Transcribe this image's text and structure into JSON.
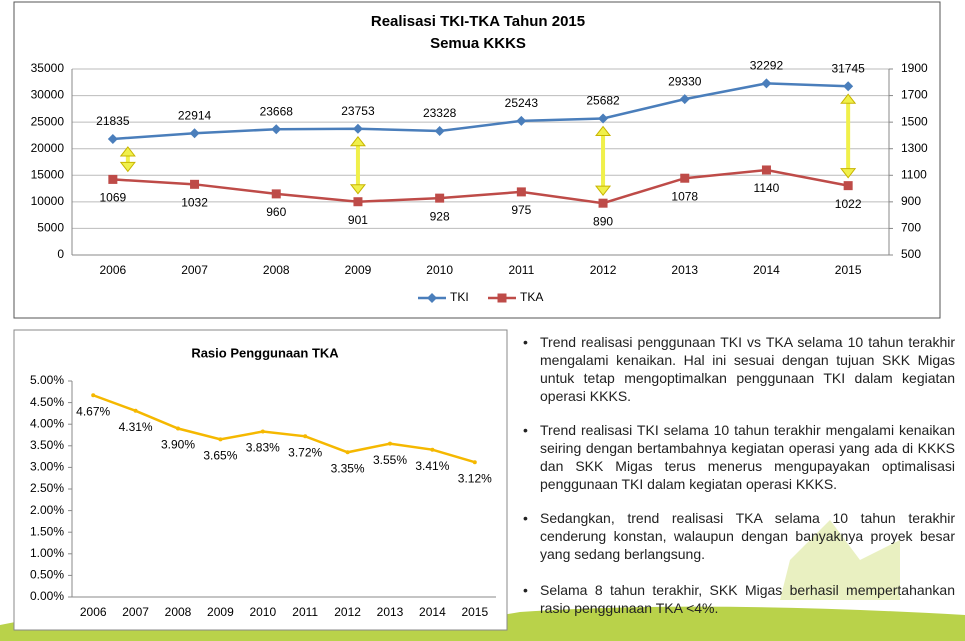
{
  "chart_data": [
    {
      "type": "line",
      "title": "Realisasi TKI-TKA Tahun 2015",
      "subtitle": "Semua KKKS",
      "categories": [
        "2006",
        "2007",
        "2008",
        "2009",
        "2010",
        "2011",
        "2012",
        "2013",
        "2014",
        "2015"
      ],
      "series": [
        {
          "name": "TKI",
          "color": "#4a7ebb",
          "marker": "diamond",
          "axis": "y",
          "values": [
            21835,
            22914,
            23668,
            23753,
            23328,
            25243,
            25682,
            29330,
            32292,
            31745
          ]
        },
        {
          "name": "TKA",
          "color": "#be4b48",
          "marker": "square",
          "axis": "y2",
          "values": [
            1069,
            1032,
            960,
            901,
            928,
            975,
            890,
            1078,
            1140,
            1022
          ]
        }
      ],
      "ylim": [
        0,
        35000
      ],
      "yticks": [
        0,
        5000,
        10000,
        15000,
        20000,
        25000,
        30000,
        35000
      ],
      "y2lim": [
        500,
        1900
      ],
      "y2ticks": [
        500,
        700,
        900,
        1100,
        1300,
        1500,
        1700,
        1900
      ],
      "grid": true,
      "legend": "bottom"
    },
    {
      "type": "line",
      "title": "Rasio Penggunaan TKA",
      "categories": [
        "2006",
        "2007",
        "2008",
        "2009",
        "2010",
        "2011",
        "2012",
        "2013",
        "2014",
        "2015"
      ],
      "series": [
        {
          "color": "#f5b800",
          "marker": "none",
          "axis": "y",
          "values": [
            4.67,
            4.31,
            3.9,
            3.65,
            3.83,
            3.72,
            3.35,
            3.55,
            3.41,
            3.12
          ],
          "value_labels": [
            "4.67%",
            "4.31%",
            "3.90%",
            "3.65%",
            "3.83%",
            "3.72%",
            "3.35%",
            "3.55%",
            "3.41%",
            "3.12%"
          ]
        }
      ],
      "ylim": [
        0,
        5
      ],
      "yticks": [
        {
          "value": 0,
          "label": "0.00%"
        },
        {
          "value": 0.5,
          "label": "0.50%"
        },
        {
          "value": 1,
          "label": "1.00%"
        },
        {
          "value": 1.5,
          "label": "1.50%"
        },
        {
          "value": 2,
          "label": "2.00%"
        },
        {
          "value": 2.5,
          "label": "2.50%"
        },
        {
          "value": 3,
          "label": "3.00%"
        },
        {
          "value": 3.5,
          "label": "3.50%"
        },
        {
          "value": 4,
          "label": "4.00%"
        },
        {
          "value": 4.5,
          "label": "4.50%"
        },
        {
          "value": 5,
          "label": "5.00%"
        }
      ],
      "grid": false
    }
  ],
  "bullets": [
    "Trend realisasi penggunaan TKI vs TKA selama 10 tahun terakhir mengalami kenaikan. Hal ini sesuai dengan tujuan SKK Migas untuk tetap mengoptimalkan penggunaan TKI dalam kegiatan operasi KKKS.",
    "Trend realisasi TKI selama 10 tahun terakhir mengalami kenaikan seiring dengan bertambahnya kegiatan operasi yang ada di KKKS dan SKK Migas terus menerus mengupayakan optimalisasi penggunaan TKI dalam kegiatan operasi KKKS.",
    "Sedangkan, trend realisasi TKA selama 10 tahun terakhir cenderung konstan, walaupun dengan banyaknya proyek besar yang sedang berlangsung.",
    "Selama 8 tahun terakhir, SKK Migas berhasil mempertahankan rasio penggunaan TKA <4%."
  ]
}
